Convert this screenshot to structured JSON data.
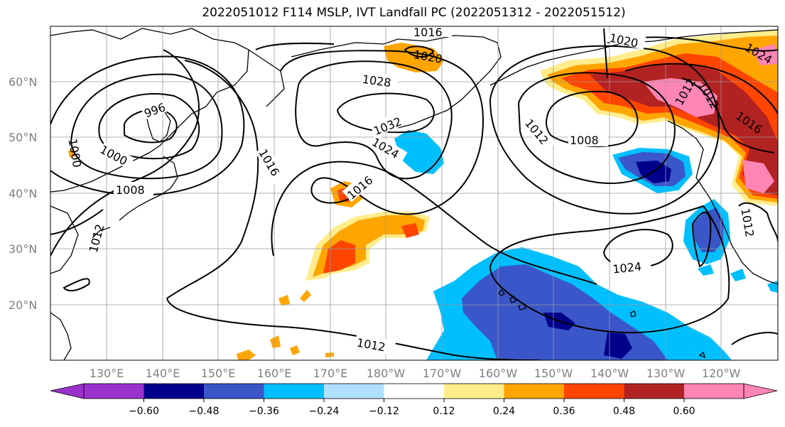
{
  "map": {
    "title": "2022051012 F114 MSLP, IVT Landfall PC (2022051312 - 2022051512)",
    "lat_labels": [
      "60°N",
      "50°N",
      "40°N",
      "30°N",
      "20°N"
    ],
    "lon_labels": [
      "130°E",
      "140°E",
      "150°E",
      "160°E",
      "170°E",
      "180°W",
      "170°W",
      "160°W",
      "150°W",
      "140°W",
      "130°W",
      "120°W"
    ],
    "contour_labels": [
      "1016",
      "1020",
      "1024",
      "1020",
      "1028",
      "996",
      "1000",
      "1000",
      "1008",
      "1012",
      "1016",
      "1032",
      "1024",
      "1016",
      "1012",
      "1008",
      "1012",
      "1012",
      "1016",
      "1024",
      "1012",
      "1012"
    ]
  },
  "colorbar": {
    "ticks": [
      "−0.60",
      "−0.48",
      "−0.36",
      "−0.24",
      "−0.12",
      "0.12",
      "0.24",
      "0.36",
      "0.48",
      "0.60"
    ],
    "colors": [
      "#9932cc",
      "#00008b",
      "#3a56c8",
      "#00bfff",
      "#b0e0ff",
      "#ffffff",
      "#ffec8b",
      "#ffa500",
      "#ff4500",
      "#b22222",
      "#ff85b5",
      "#ff85b5"
    ]
  }
}
